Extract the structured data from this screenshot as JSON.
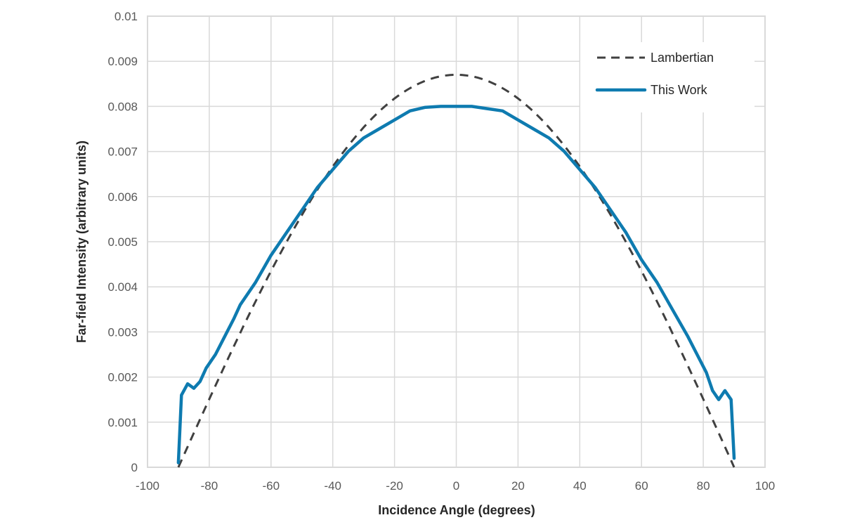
{
  "chart_data": {
    "type": "line",
    "title": "",
    "xlabel": "Incidence Angle (degrees)",
    "ylabel": "Far-field Intensity (arbitrary units)",
    "xlim": [
      -100,
      100
    ],
    "ylim": [
      0,
      0.01
    ],
    "x_ticks": [
      -100,
      -80,
      -60,
      -40,
      -20,
      0,
      20,
      40,
      60,
      80,
      100
    ],
    "y_ticks": [
      0,
      0.001,
      0.002,
      0.003,
      0.004,
      0.005,
      0.006,
      0.007,
      0.008,
      0.009,
      0.01
    ],
    "y_tick_labels": [
      "0",
      "0.001",
      "0.002",
      "0.003",
      "0.004",
      "0.005",
      "0.006",
      "0.007",
      "0.008",
      "0.009",
      "0.01"
    ],
    "grid": true,
    "legend_position": "upper right",
    "series": [
      {
        "name": "Lambertian",
        "style": "dashed",
        "color": "#404040",
        "x": [
          -90,
          -85,
          -80,
          -75,
          -70,
          -65,
          -60,
          -55,
          -50,
          -45,
          -40,
          -35,
          -30,
          -25,
          -20,
          -15,
          -10,
          -5,
          0,
          5,
          10,
          15,
          20,
          25,
          30,
          35,
          40,
          45,
          50,
          55,
          60,
          65,
          70,
          75,
          80,
          85,
          90
        ],
        "y": [
          0.0,
          0.00076,
          0.00151,
          0.00225,
          0.00298,
          0.00368,
          0.00435,
          0.00499,
          0.00559,
          0.00615,
          0.00666,
          0.00713,
          0.00753,
          0.00788,
          0.00818,
          0.0084,
          0.00857,
          0.00867,
          0.0087,
          0.00867,
          0.00857,
          0.0084,
          0.00818,
          0.00788,
          0.00753,
          0.00713,
          0.00666,
          0.00615,
          0.00559,
          0.00499,
          0.00435,
          0.00368,
          0.00298,
          0.00225,
          0.00151,
          0.00076,
          0.0
        ]
      },
      {
        "name": "This Work",
        "style": "solid",
        "color": "#0E7BB0",
        "x": [
          -90,
          -89,
          -87,
          -85,
          -83,
          -81,
          -78,
          -75,
          -72,
          -70,
          -65,
          -60,
          -55,
          -50,
          -45,
          -40,
          -35,
          -30,
          -25,
          -20,
          -15,
          -10,
          -5,
          0,
          5,
          10,
          15,
          20,
          25,
          30,
          35,
          40,
          45,
          50,
          55,
          60,
          65,
          70,
          75,
          78,
          81,
          83,
          85,
          87,
          89,
          90
        ],
        "y": [
          0.0001,
          0.0016,
          0.00185,
          0.00175,
          0.0019,
          0.0022,
          0.0025,
          0.0029,
          0.0033,
          0.0036,
          0.0041,
          0.0047,
          0.0052,
          0.0057,
          0.0062,
          0.0066,
          0.007,
          0.0073,
          0.0075,
          0.0077,
          0.0079,
          0.00798,
          0.008,
          0.008,
          0.008,
          0.00795,
          0.0079,
          0.0077,
          0.0075,
          0.0073,
          0.007,
          0.0066,
          0.0062,
          0.0057,
          0.0052,
          0.0046,
          0.0041,
          0.0035,
          0.0029,
          0.0025,
          0.0021,
          0.0017,
          0.0015,
          0.0017,
          0.0015,
          0.0002
        ]
      }
    ]
  },
  "legend": {
    "items": [
      {
        "label": "Lambertian"
      },
      {
        "label": "This Work"
      }
    ]
  },
  "axes": {
    "x_title": "Incidence Angle (degrees)",
    "y_title": "Far-field Intensity (arbitrary units)"
  },
  "colors": {
    "gridline": "#D9D9D9",
    "lambertian": "#404040",
    "this_work": "#0E7BB0"
  }
}
